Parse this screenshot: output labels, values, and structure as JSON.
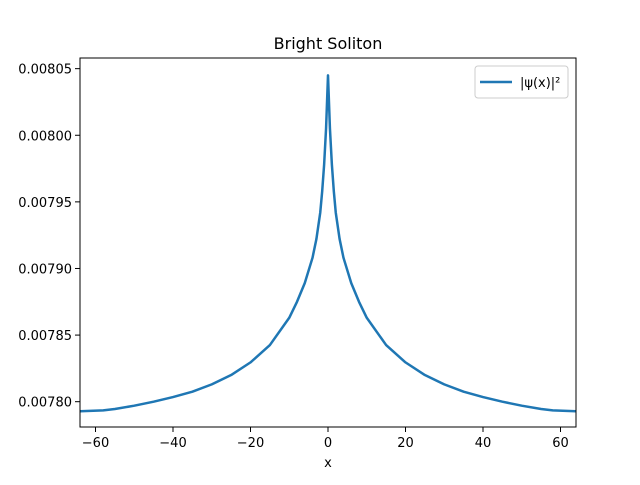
{
  "chart_data": {
    "type": "line",
    "title": "Bright Soliton",
    "xlabel": "x",
    "ylabel": "",
    "xlim": [
      -64,
      64
    ],
    "ylim": [
      0.007781,
      0.008058
    ],
    "x_ticks": [
      -60,
      -40,
      -20,
      0,
      20,
      40,
      60
    ],
    "x_tick_labels": [
      "−60",
      "−40",
      "−20",
      "0",
      "20",
      "40",
      "60"
    ],
    "y_ticks": [
      0.0078,
      0.00785,
      0.0079,
      0.00795,
      0.008,
      0.00805
    ],
    "y_tick_labels": [
      "0.00780",
      "0.00785",
      "0.00790",
      "0.00795",
      "0.00800",
      "0.00805"
    ],
    "grid": false,
    "legend_position": "top-right",
    "series": [
      {
        "name": "|ψ(x)|²",
        "color": "#1f77b4",
        "x": [
          -64,
          -58,
          -55,
          -50,
          -45,
          -40,
          -35,
          -30,
          -25,
          -20,
          -15,
          -10,
          -8,
          -6,
          -4,
          -3,
          -2,
          -1.5,
          -1,
          -0.5,
          0,
          0.5,
          1,
          1.5,
          2,
          3,
          4,
          6,
          8,
          10,
          15,
          20,
          25,
          30,
          35,
          40,
          45,
          50,
          55,
          58,
          64
        ],
        "y": [
          0.0077928,
          0.0077935,
          0.0077945,
          0.007797,
          0.0078,
          0.0078035,
          0.0078075,
          0.007813,
          0.00782,
          0.0078295,
          0.0078425,
          0.007863,
          0.007875,
          0.007889,
          0.007908,
          0.007922,
          0.007942,
          0.007958,
          0.007978,
          0.008005,
          0.008045,
          0.008005,
          0.007978,
          0.007958,
          0.007942,
          0.007922,
          0.007908,
          0.007889,
          0.007875,
          0.007863,
          0.0078425,
          0.0078295,
          0.00782,
          0.007813,
          0.0078075,
          0.0078035,
          0.0078,
          0.007797,
          0.0077945,
          0.0077935,
          0.0077928
        ]
      }
    ]
  }
}
